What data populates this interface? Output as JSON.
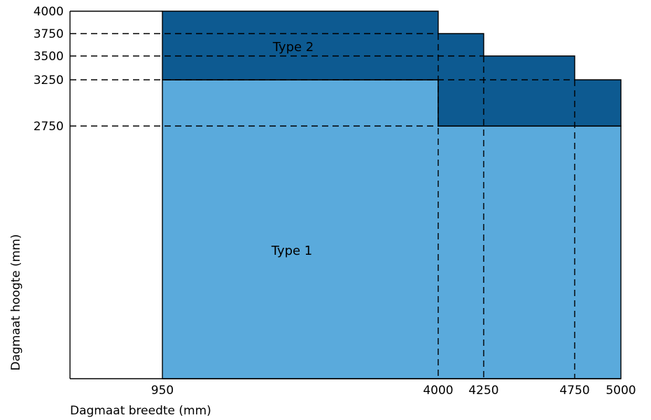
{
  "chart_data": {
    "type": "area",
    "xlabel": "Dagmaat breedte (mm)",
    "ylabel": "Dagmaat hoogte (mm)",
    "x_ticks": [
      950,
      4000,
      4250,
      4750,
      5000
    ],
    "y_ticks": [
      4000,
      3750,
      3500,
      3250,
      2750
    ],
    "regions": [
      {
        "name": "Type 1",
        "color": "#5aaadc",
        "polygon": [
          [
            950,
            0
          ],
          [
            5000,
            0
          ],
          [
            5000,
            2750
          ],
          [
            4000,
            2750
          ],
          [
            4000,
            3250
          ],
          [
            950,
            3250
          ]
        ]
      },
      {
        "name": "Type 2",
        "color": "#0d5a91",
        "polygon": [
          [
            950,
            3250
          ],
          [
            4000,
            3250
          ],
          [
            4000,
            2750
          ],
          [
            5000,
            2750
          ],
          [
            5000,
            3250
          ],
          [
            4750,
            3250
          ],
          [
            4750,
            3500
          ],
          [
            4250,
            3500
          ],
          [
            4250,
            3750
          ],
          [
            4000,
            3750
          ],
          [
            4000,
            4000
          ],
          [
            950,
            4000
          ]
        ]
      }
    ],
    "guides": {
      "horizontal": [
        {
          "y": 3750,
          "x_end": 4000
        },
        {
          "y": 3500,
          "x_end": 4250
        },
        {
          "y": 3250,
          "x_end": 4750
        },
        {
          "y": 2750,
          "x_end": 4000
        }
      ],
      "vertical": [
        {
          "x": 4000,
          "y_end": 3750
        },
        {
          "x": 4250,
          "y_end": 3500
        },
        {
          "x": 4750,
          "y_end": 3250
        }
      ]
    },
    "xlim": [
      0,
      5000
    ],
    "ylim": [
      0,
      4000
    ],
    "grid": false,
    "legend": "none"
  }
}
